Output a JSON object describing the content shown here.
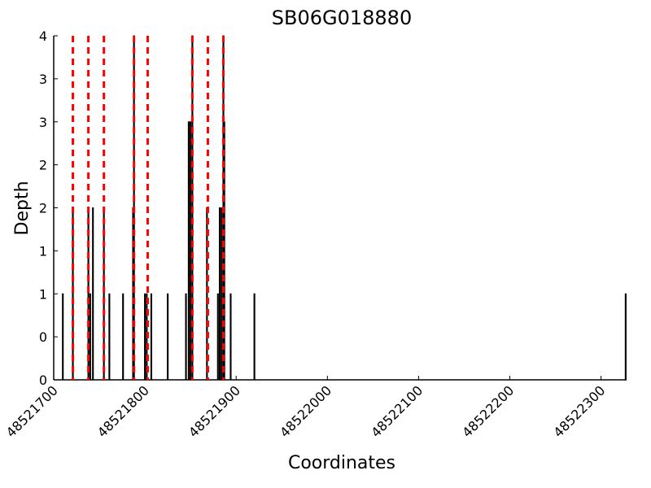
{
  "chart_data": {
    "type": "bar",
    "title": "SB06G018880",
    "x_label": "Coordinates",
    "y_label": "Depth",
    "x": [
      48521710,
      48521721,
      48521738,
      48521740,
      48521743,
      48521755,
      48521761,
      48521776,
      48521787,
      48521788,
      48521800,
      48521802,
      48521807,
      48521825,
      48521845,
      48521848,
      48521850,
      48521852,
      48521868,
      48521880,
      48521882,
      48521884,
      48521886,
      48521887,
      48521894,
      48521920,
      48522327
    ],
    "values": [
      1,
      2,
      2,
      1,
      2,
      2,
      1,
      1,
      2,
      4,
      1,
      1,
      1,
      1,
      1,
      3,
      3,
      4,
      2,
      1,
      2,
      2,
      4,
      3,
      1,
      1,
      1
    ],
    "color": "#000000",
    "reference_lines": {
      "color": "#ff0000",
      "x": [
        48521721,
        48521738,
        48521755,
        48521788,
        48521803,
        48521852,
        48521869,
        48521886
      ]
    },
    "xlim": [
      48521700,
      48522328
    ],
    "xticks": [
      48521700,
      48521800,
      48521900,
      48522000,
      48522100,
      48522200,
      48522300
    ],
    "ylim": [
      0,
      4
    ],
    "yticks": [
      0,
      {
        "value": 0.5,
        "label": "0"
      },
      1,
      {
        "value": 1.5,
        "label": "1"
      },
      2,
      {
        "value": 2.5,
        "label": "2"
      },
      3,
      {
        "value": 3.5,
        "label": "3"
      },
      4
    ],
    "grid": false
  }
}
